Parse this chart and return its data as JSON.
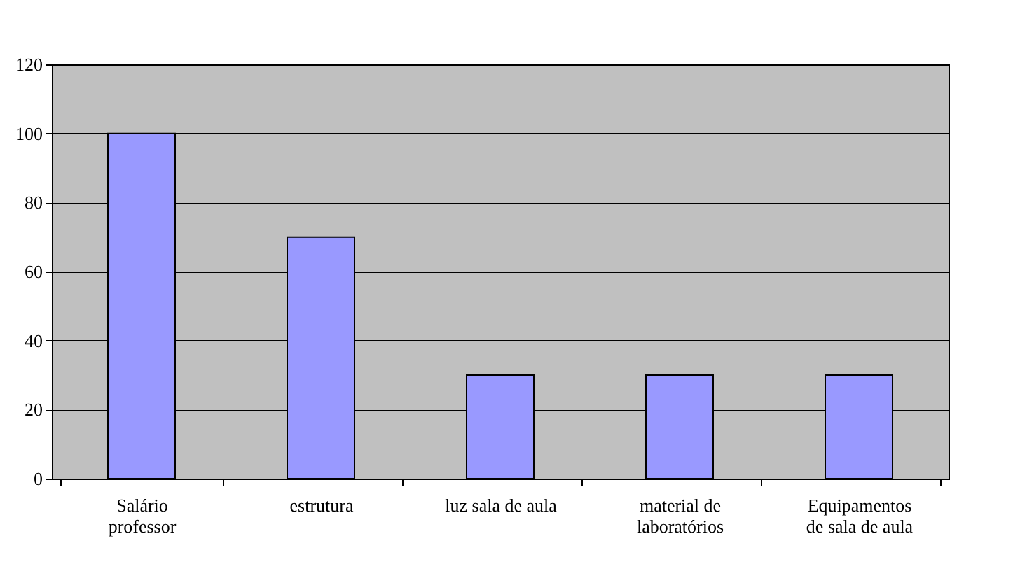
{
  "chart_data": {
    "type": "bar",
    "categories": [
      "Salário professor",
      "estrutura",
      "luz sala de aula",
      "material de laboratórios",
      "Equipamentos de sala de aula"
    ],
    "values": [
      100,
      70,
      30,
      30,
      30
    ],
    "color": "#9999ff",
    "ylim": [
      0,
      120
    ],
    "yticks": [
      0,
      20,
      40,
      60,
      80,
      100,
      120
    ],
    "grid": "y"
  }
}
